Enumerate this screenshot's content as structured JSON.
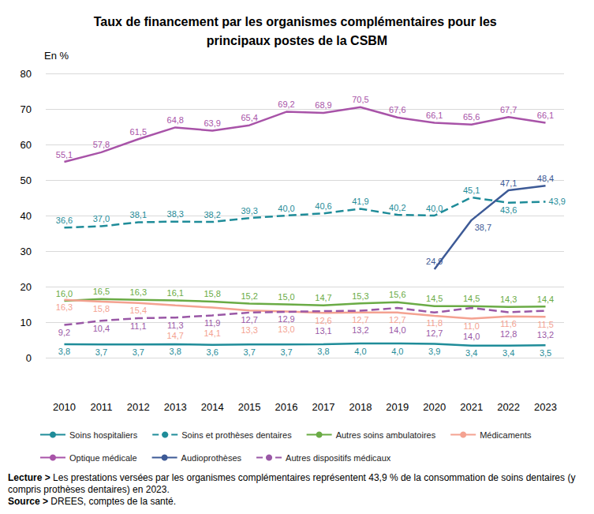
{
  "chart_data": {
    "type": "line",
    "title": "Taux de financement par les organismes complémentaires pour les principaux postes de la CSBM",
    "y_label": "En %",
    "categories": [
      "2010",
      "2011",
      "2012",
      "2013",
      "2014",
      "2015",
      "2016",
      "2017",
      "2018",
      "2019",
      "2020",
      "2021",
      "2022",
      "2023"
    ],
    "series": [
      {
        "name": "Soins hospitaliers",
        "color": "#1f8c99",
        "line_style": "solid",
        "values": [
          3.8,
          3.7,
          3.7,
          3.8,
          3.6,
          3.7,
          3.7,
          3.8,
          4.0,
          4.0,
          3.9,
          3.4,
          3.4,
          3.5
        ],
        "value_labels": [
          "3,8",
          "3,7",
          "3,7",
          "3,8",
          "3,6",
          "3,7",
          "3,7",
          "3,8",
          "4,0",
          "4,0",
          "3,9",
          "3,4",
          "3,4",
          "3,5"
        ]
      },
      {
        "name": "Soins et prothèses dentaires",
        "color": "#1f8c99",
        "line_style": "dashed",
        "values": [
          36.6,
          37.0,
          38.1,
          38.3,
          38.2,
          39.3,
          40.0,
          40.6,
          41.9,
          40.2,
          40.0,
          45.1,
          43.6,
          43.9
        ],
        "value_labels": [
          "36,6",
          "37,0",
          "38,1",
          "38,3",
          "38,2",
          "39,3",
          "40,0",
          "40,6",
          "41,9",
          "40,2",
          "40,0",
          "45,1",
          "43,6",
          "43,9"
        ]
      },
      {
        "name": "Autres soins ambulatoires",
        "color": "#6aab45",
        "line_style": "solid",
        "values": [
          16.0,
          16.5,
          16.3,
          16.1,
          15.8,
          15.2,
          15.0,
          14.7,
          15.3,
          15.6,
          14.5,
          14.5,
          14.3,
          14.4
        ],
        "value_labels": [
          "16,0",
          "16,5",
          "16,3",
          "16,1",
          "15,8",
          "15,2",
          "15,0",
          "14,7",
          "15,3",
          "15,6",
          "14,5",
          "14,5",
          "14,3",
          "14,4"
        ]
      },
      {
        "name": "Médicaments",
        "color": "#f4a291",
        "line_style": "solid",
        "values": [
          16.3,
          15.8,
          15.4,
          14.7,
          14.1,
          13.3,
          13.0,
          12.6,
          12.7,
          12.7,
          11.8,
          11.0,
          11.6,
          11.5
        ],
        "value_labels": [
          "16,3",
          "15,8",
          "15,4",
          "14,7",
          "14,1",
          "13,3",
          "13,0",
          "12,6",
          "12,7",
          "12,7",
          "11,8",
          "11,0",
          "11,6",
          "11,5"
        ]
      },
      {
        "name": "Optique médicale",
        "color": "#a853a8",
        "line_style": "solid",
        "values": [
          55.1,
          57.8,
          61.5,
          64.8,
          63.9,
          65.4,
          69.2,
          68.9,
          70.5,
          67.6,
          66.1,
          65.6,
          67.7,
          66.1
        ],
        "value_labels": [
          "55,1",
          "57,8",
          "61,5",
          "64,8",
          "63,9",
          "65,4",
          "69,2",
          "68,9",
          "70,5",
          "67,6",
          "66,1",
          "65,6",
          "67,7",
          "66,1"
        ]
      },
      {
        "name": "Audioprothèses",
        "color": "#3d5a96",
        "line_style": "solid",
        "values": [
          null,
          null,
          null,
          null,
          null,
          null,
          null,
          null,
          null,
          null,
          24.9,
          38.7,
          47.1,
          48.4
        ],
        "value_labels": [
          null,
          null,
          null,
          null,
          null,
          null,
          null,
          null,
          null,
          null,
          "24,9",
          "38,7",
          "47,1",
          "48,4"
        ]
      },
      {
        "name": "Autres dispositifs médicaux",
        "color": "#9a58a6",
        "line_style": "dashed",
        "values": [
          9.2,
          10.4,
          11.1,
          11.3,
          11.9,
          12.7,
          12.9,
          13.1,
          13.2,
          14.0,
          12.7,
          14.0,
          12.8,
          13.2
        ],
        "value_labels": [
          "9,2",
          "10,4",
          "11,1",
          "11,3",
          "11,9",
          "12,7",
          "12,9",
          "13,1",
          "13,2",
          "14,0",
          "12,7",
          "14,0",
          "12,8",
          "13,2"
        ]
      }
    ],
    "ylim": [
      0,
      80
    ],
    "yticks": [
      0,
      10,
      20,
      30,
      40,
      50,
      60,
      70,
      80
    ],
    "grid": true,
    "legend": "bottom",
    "data_labels": true,
    "notes": [
      {
        "label": "Lecture >",
        "text": "Les prestations versées par les organismes complémentaires représentent 43,9 % de la consommation de soins dentaires (y compris prothèses dentaires) en 2023."
      },
      {
        "label": "Source >",
        "text": "DREES, comptes de la santé."
      }
    ]
  }
}
